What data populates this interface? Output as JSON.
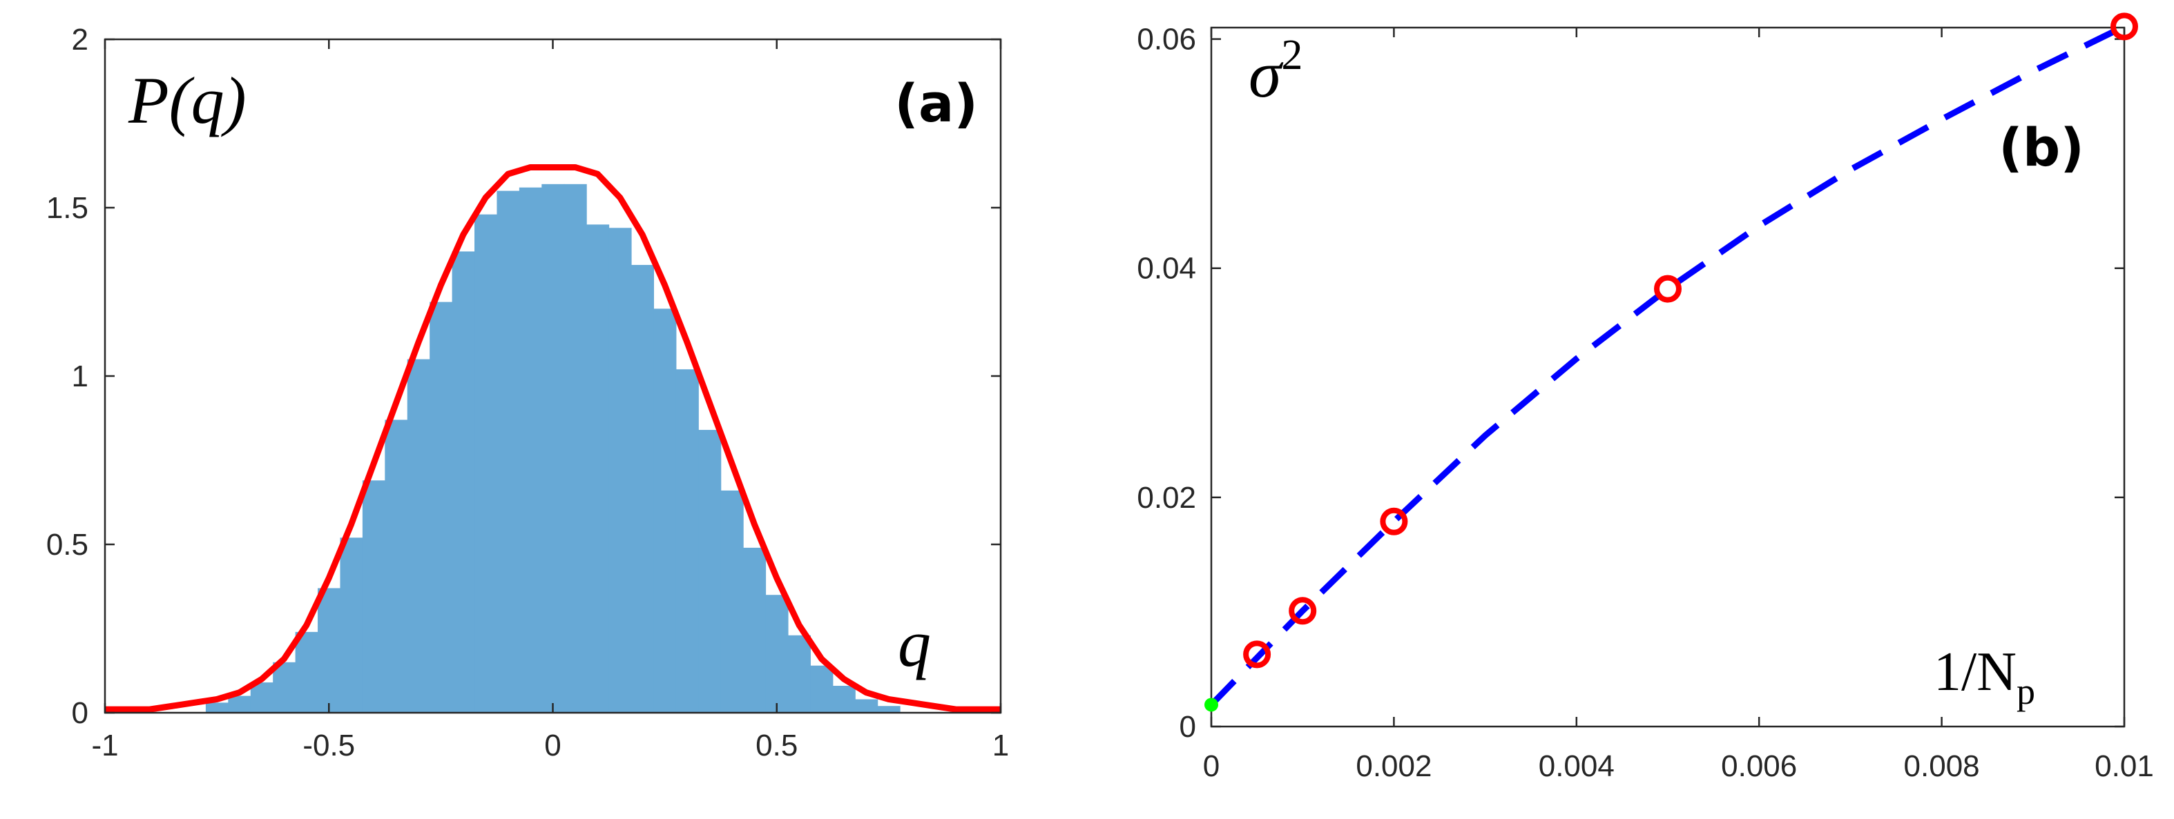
{
  "chart_data": [
    {
      "type": "bar",
      "panel_label": "(a)",
      "ylabel": "P(q)",
      "xlabel": "q",
      "xlim": [
        -1,
        1
      ],
      "ylim": [
        0,
        2
      ],
      "xticks": [
        "-1",
        "-0.5",
        "0",
        "0.5",
        "1"
      ],
      "yticks": [
        "0",
        "0.5",
        "1",
        "1.5",
        "2"
      ],
      "histogram_color": "#67a9d6",
      "fit_color": "#ff0000",
      "histogram": {
        "bin_centers": [
          -0.75,
          -0.7,
          -0.65,
          -0.6,
          -0.55,
          -0.5,
          -0.45,
          -0.4,
          -0.35,
          -0.3,
          -0.25,
          -0.2,
          -0.15,
          -0.1,
          -0.05,
          0,
          0.05,
          0.1,
          0.15,
          0.2,
          0.25,
          0.3,
          0.35,
          0.4,
          0.45,
          0.5,
          0.55,
          0.6,
          0.65,
          0.7,
          0.75
        ],
        "values": [
          0.03,
          0.05,
          0.09,
          0.15,
          0.24,
          0.37,
          0.52,
          0.69,
          0.87,
          1.05,
          1.22,
          1.37,
          1.48,
          1.55,
          1.56,
          1.57,
          1.57,
          1.45,
          1.44,
          1.33,
          1.2,
          1.02,
          0.84,
          0.66,
          0.49,
          0.35,
          0.23,
          0.14,
          0.08,
          0.04,
          0.02
        ]
      },
      "fit": {
        "x": [
          -1,
          -0.95,
          -0.9,
          -0.85,
          -0.8,
          -0.75,
          -0.7,
          -0.65,
          -0.6,
          -0.55,
          -0.5,
          -0.45,
          -0.4,
          -0.35,
          -0.3,
          -0.25,
          -0.2,
          -0.15,
          -0.1,
          -0.05,
          0,
          0.05,
          0.1,
          0.15,
          0.2,
          0.25,
          0.3,
          0.35,
          0.4,
          0.45,
          0.5,
          0.55,
          0.6,
          0.65,
          0.7,
          0.75,
          0.8,
          0.85,
          0.9,
          0.95,
          1
        ],
        "y": [
          0.01,
          0.01,
          0.01,
          0.02,
          0.03,
          0.04,
          0.06,
          0.1,
          0.16,
          0.26,
          0.4,
          0.56,
          0.74,
          0.92,
          1.1,
          1.27,
          1.42,
          1.53,
          1.6,
          1.62,
          1.62,
          1.62,
          1.6,
          1.53,
          1.42,
          1.27,
          1.1,
          0.92,
          0.74,
          0.56,
          0.4,
          0.26,
          0.16,
          0.1,
          0.06,
          0.04,
          0.03,
          0.02,
          0.01,
          0.01,
          0.01
        ]
      }
    },
    {
      "type": "scatter",
      "panel_label": "(b)",
      "ylabel": "σ",
      "ylabel_sup": "2",
      "xlabel": "1/N",
      "xlabel_sub": "p",
      "xlim": [
        0,
        0.01
      ],
      "ylim": [
        0,
        0.061
      ],
      "xticks": [
        "0",
        "0.002",
        "0.004",
        "0.006",
        "0.008",
        "0.01"
      ],
      "yticks": [
        "0",
        "0.02",
        "0.04",
        "0.06"
      ],
      "marker_color": "#ff0000",
      "fit_color": "#0000ff",
      "extrapolated_point_color": "#00ff00",
      "points": {
        "x": [
          0.0005,
          0.001,
          0.002,
          0.005,
          0.01
        ],
        "y": [
          0.0063,
          0.0101,
          0.0179,
          0.0382,
          0.0611
        ]
      },
      "fit": {
        "x": [
          0,
          0.001,
          0.002,
          0.003,
          0.004,
          0.005,
          0.006,
          0.007,
          0.008,
          0.009,
          0.01
        ],
        "y": [
          0.0019,
          0.0101,
          0.0179,
          0.0254,
          0.0321,
          0.0382,
          0.0437,
          0.0486,
          0.053,
          0.0572,
          0.0611
        ]
      },
      "extrapolated_point": {
        "x": 0,
        "y": 0.0019
      }
    }
  ]
}
